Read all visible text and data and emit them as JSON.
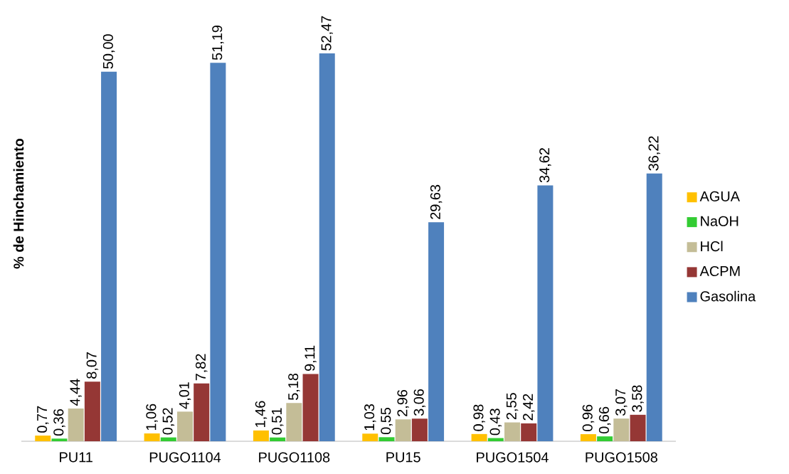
{
  "chart_data": {
    "type": "bar",
    "ylabel": "% de Hinchamiento",
    "categories": [
      "PU11",
      "PUGO1104",
      "PUGO1108",
      "PU15",
      "PUGO1504",
      "PUGO1508"
    ],
    "series": [
      {
        "name": "AGUA",
        "color": "#ffc000",
        "values": [
          0.77,
          1.06,
          1.46,
          1.03,
          0.98,
          0.96
        ],
        "value_labels": [
          "0,77",
          "1,06",
          "1,46",
          "1,03",
          "0,98",
          "0,96"
        ]
      },
      {
        "name": "NaOH",
        "color": "#33cc33",
        "values": [
          0.36,
          0.52,
          0.51,
          0.55,
          0.43,
          0.66
        ],
        "value_labels": [
          "0,36",
          "0,52",
          "0,51",
          "0,55",
          "0,43",
          "0,66"
        ]
      },
      {
        "name": "HCl",
        "color": "#c4bd97",
        "values": [
          4.44,
          4.01,
          5.18,
          2.96,
          2.55,
          3.07
        ],
        "value_labels": [
          "4,44",
          "4,01",
          "5,18",
          "2,96",
          "2,55",
          "3,07"
        ]
      },
      {
        "name": "ACPM",
        "color": "#953735",
        "values": [
          8.07,
          7.82,
          9.11,
          3.06,
          2.42,
          3.58
        ],
        "value_labels": [
          "8,07",
          "7,82",
          "9,11",
          "3,06",
          "2,42",
          "3,58"
        ]
      },
      {
        "name": "Gasolina",
        "color": "#4f81bd",
        "values": [
          50.0,
          51.19,
          52.47,
          29.63,
          34.62,
          36.22
        ],
        "value_labels": [
          "50,00",
          "51,19",
          "52,47",
          "29,63",
          "34,62",
          "36,22"
        ]
      }
    ],
    "legend": "right",
    "tick_labels": "x"
  }
}
